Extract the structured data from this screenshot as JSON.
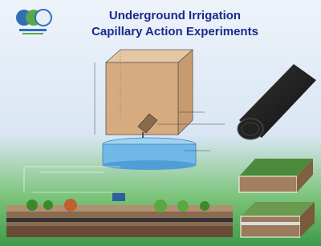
{
  "header": {
    "title_line1": "Underground Irrigation",
    "title_line2": "Capillary Action Experiments"
  }
}
